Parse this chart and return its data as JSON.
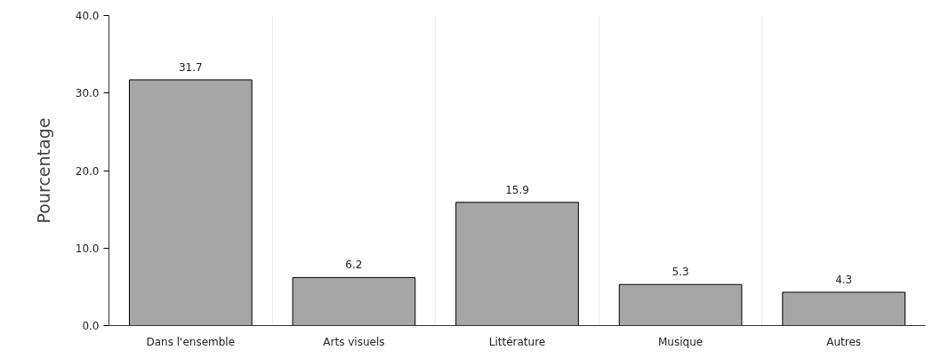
{
  "chart_data": {
    "type": "bar",
    "ylabel": "Pourcentage",
    "categories": [
      "Dans l'ensemble",
      "Arts visuels",
      "Littérature",
      "Musique",
      "Autres"
    ],
    "values": [
      31.7,
      6.2,
      15.9,
      5.3,
      4.3
    ],
    "color": "#a6a6a6",
    "ylim": [
      0,
      40
    ],
    "yticks": [
      {
        "value": 0,
        "label": "0.0"
      },
      {
        "value": 10,
        "label": "10.0"
      },
      {
        "value": 20,
        "label": "20.0"
      },
      {
        "value": 30,
        "label": "30.0"
      },
      {
        "value": 40,
        "label": "40.0"
      }
    ],
    "grid": "x",
    "data_labels": true
  }
}
